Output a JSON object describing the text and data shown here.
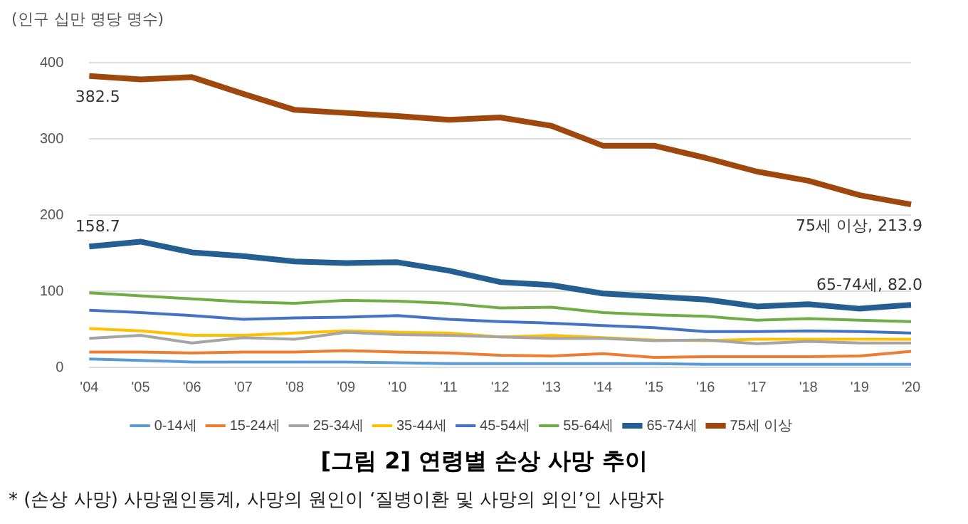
{
  "chart_data": {
    "type": "line",
    "title": "[그림 2] 연령별 손상 사망 추이",
    "ylabel": "(인구 십만 명당 명수)",
    "categories": [
      "'04",
      "'05",
      "'06",
      "'07",
      "'08",
      "'09",
      "'10",
      "'11",
      "'12",
      "'13",
      "'14",
      "'15",
      "'16",
      "'17",
      "'18",
      "'19",
      "'20"
    ],
    "series": [
      {
        "name": "0-14세",
        "color": "#5b9bd5",
        "values": [
          11,
          9,
          7,
          7,
          7,
          7,
          6,
          5,
          5,
          5,
          5,
          5,
          4,
          4,
          4,
          4,
          4
        ]
      },
      {
        "name": "15-24세",
        "color": "#ed7d31",
        "values": [
          20,
          20,
          19,
          20,
          20,
          22,
          20,
          19,
          16,
          15,
          18,
          13,
          14,
          14,
          14,
          15,
          21
        ]
      },
      {
        "name": "25-34세",
        "color": "#a5a5a5",
        "values": [
          38,
          42,
          32,
          39,
          37,
          46,
          43,
          42,
          40,
          38,
          38,
          35,
          36,
          31,
          34,
          32,
          32
        ]
      },
      {
        "name": "35-44세",
        "color": "#ffc000",
        "values": [
          51,
          48,
          42,
          42,
          45,
          48,
          46,
          45,
          40,
          42,
          39,
          36,
          35,
          37,
          37,
          37,
          37
        ]
      },
      {
        "name": "45-54세",
        "color": "#4472c4",
        "values": [
          75,
          72,
          68,
          63,
          65,
          66,
          68,
          63,
          60,
          58,
          55,
          52,
          47,
          47,
          48,
          47,
          45
        ]
      },
      {
        "name": "55-64세",
        "color": "#70ad47",
        "values": [
          98,
          94,
          90,
          86,
          84,
          88,
          87,
          84,
          78,
          79,
          72,
          69,
          67,
          62,
          64,
          62,
          60
        ]
      },
      {
        "name": "65-74세",
        "color": "#255e91",
        "values": [
          158.7,
          165,
          151,
          146,
          139,
          137,
          138,
          127,
          112,
          108,
          97,
          93,
          89,
          80,
          83,
          77,
          82.0
        ]
      },
      {
        "name": "75세 이상",
        "color": "#9e480e",
        "values": [
          382.5,
          378,
          381,
          359,
          338,
          334,
          330,
          325,
          328,
          317,
          291,
          291,
          275,
          257,
          245,
          226,
          213.9
        ]
      }
    ],
    "ylim": [
      0,
      400
    ],
    "yticks": [
      0,
      100,
      200,
      300,
      400
    ],
    "grid": "y",
    "legend": "bottom",
    "marker": "none",
    "line_style": "solid",
    "annotations": [
      {
        "text": "382.5",
        "x": "'04",
        "y": 382.5
      },
      {
        "text": "158.7",
        "x": "'04",
        "y": 158.7
      },
      {
        "text": "75세 이상, 213.9",
        "x": "'20",
        "y": 213.9
      },
      {
        "text": "65-74세, 82.0",
        "x": "'20",
        "y": 82.0
      },
      "* (손상 사망) 사망원인통계, 사망의 원인이 ‘질병이환 및 사망의 외인’인 사망자"
    ]
  }
}
